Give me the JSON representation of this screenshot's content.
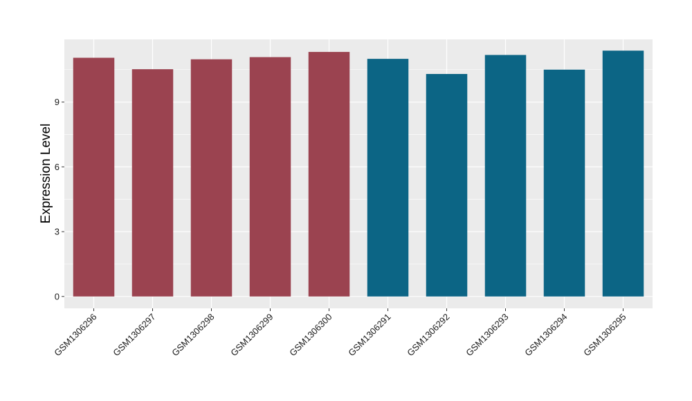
{
  "chart_data": {
    "type": "bar",
    "title": "",
    "xlabel": "",
    "ylabel": "Expression Level",
    "categories": [
      "GSM1306296",
      "GSM1306297",
      "GSM1306298",
      "GSM1306299",
      "GSM1306300",
      "GSM1306291",
      "GSM1306292",
      "GSM1306293",
      "GSM1306294",
      "GSM1306295"
    ],
    "values": [
      11.05,
      10.52,
      10.98,
      11.08,
      11.32,
      11.0,
      10.3,
      11.18,
      10.5,
      11.38
    ],
    "groups": [
      0,
      0,
      0,
      0,
      0,
      1,
      1,
      1,
      1,
      1
    ],
    "group_colors": [
      "#9B4350",
      "#0C6585"
    ],
    "ylim": [
      -0.55,
      11.9
    ],
    "yticks": [
      0,
      3,
      6,
      9
    ],
    "grid": true,
    "legend": "none",
    "panel_background": "#EBEBEB",
    "gridline_color": "#FFFFFF"
  }
}
